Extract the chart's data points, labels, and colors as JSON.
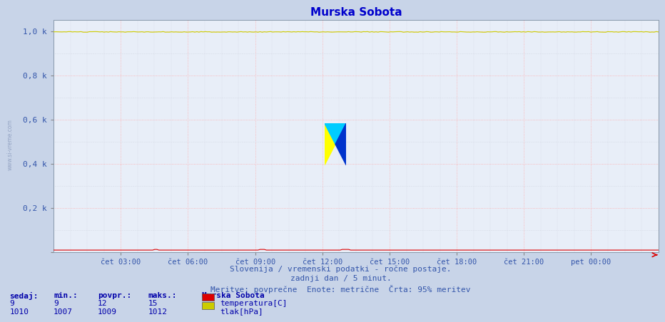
{
  "title": "Murska Sobota",
  "bg_color": "#c8d4e8",
  "plot_bg_color": "#e8eef8",
  "grid_color_major": "#ffaaaa",
  "grid_color_minor": "#c8ccd8",
  "x_labels": [
    "čet 03:00",
    "čet 06:00",
    "čet 09:00",
    "čet 12:00",
    "čet 15:00",
    "čet 18:00",
    "čet 21:00",
    "pet 00:00"
  ],
  "y_tick_labels": [
    "",
    "0,2 k",
    "0,4 k",
    "0,6 k",
    "0,8 k",
    "1,0 k"
  ],
  "y_tick_pos": [
    0.0,
    0.2,
    0.4,
    0.6,
    0.8,
    1.0
  ],
  "ylim": [
    0.0,
    1.05
  ],
  "ylabel_side_text": "www.si-vreme.com",
  "footer_line1": "Slovenija / vremenski podatki - ročne postaje.",
  "footer_line2": "zadnji dan / 5 minut.",
  "footer_line3": "Meritve: povprečne  Enote: metrične  Črta: 95% meritev",
  "legend_title": "Murska Sobota",
  "legend_entries": [
    {
      "label": "temperatura[C]",
      "color": "#dd0000"
    },
    {
      "label": "tlak[hPa]",
      "color": "#cccc00"
    }
  ],
  "stats_headers": [
    "sedaj:",
    "min.:",
    "povpr.:",
    "maks.:"
  ],
  "stats_rows": [
    [
      9,
      9,
      12,
      15
    ],
    [
      1010,
      1007,
      1009,
      1012
    ]
  ],
  "title_color": "#0000cc",
  "footer_color": "#3355aa",
  "axis_label_color": "#3355aa",
  "stats_label_color": "#0000aa",
  "n_points": 288,
  "temp_color": "#dd0000",
  "pressure_color": "#cccc00",
  "arrow_color": "#dd0000",
  "logo_yellow": "#ffff00",
  "logo_cyan": "#00ccff",
  "logo_blue": "#0033cc"
}
